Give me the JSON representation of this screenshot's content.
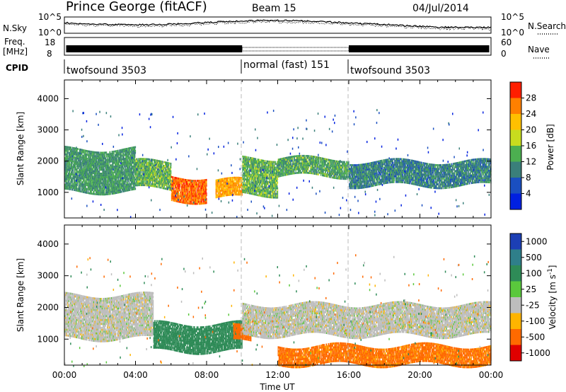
{
  "header": {
    "station": "Prince George (fitACF)",
    "beam": "Beam 15",
    "date": "04/Jul/2014"
  },
  "panels": {
    "nsky_label": "N.Sky",
    "nsearch_label": "N.Search",
    "log_tick_top": "10^5",
    "log_tick_bottom": "10^0",
    "freq_label_line1": "Freq.",
    "freq_label_line2": "[MHz]",
    "freq_ticks": [
      "18",
      "8"
    ],
    "nave_label": "Nave",
    "nave_ticks": [
      "60",
      "0"
    ],
    "cpid_label": "CPID",
    "cpid_segments": [
      {
        "name": "twofsound 3503",
        "start_h": 0,
        "end_h": 10
      },
      {
        "name": "normal (fast) 151",
        "start_h": 10,
        "end_h": 16
      },
      {
        "name": "twofsound 3503",
        "start_h": 16,
        "end_h": 24
      }
    ]
  },
  "axes": {
    "ylabel": "Slant Range [km]",
    "xlabel": "Time UT",
    "x_ticks": [
      "00:00",
      "04:00",
      "08:00",
      "12:00",
      "16:00",
      "20:00",
      "00:00"
    ],
    "y_ticks": [
      "1000",
      "2000",
      "3000",
      "4000"
    ]
  },
  "colorbars": {
    "power": {
      "label": "Power [dB]",
      "ticks": [
        "4",
        "8",
        "12",
        "16",
        "20",
        "24",
        "28"
      ],
      "colors": [
        "#0020e0",
        "#1a4fc0",
        "#3a7f7a",
        "#4caf50",
        "#c8dc1e",
        "#ffc000",
        "#ff8000",
        "#ff1e00"
      ]
    },
    "velocity": {
      "label": "Velocity [m s^-1]",
      "ticks": [
        "1000",
        "500",
        "100",
        "25",
        "-25",
        "-100",
        "-500",
        "-1000"
      ],
      "colors": [
        "#1c3fb5",
        "#2f7f8a",
        "#2e8b57",
        "#5ac83c",
        "#bdbdbd",
        "#ffb400",
        "#ff6a00",
        "#e00000"
      ]
    }
  },
  "chart_data": [
    {
      "type": "heatmap",
      "title": "Power",
      "xlabel": "Time UT",
      "ylabel": "Slant Range [km]",
      "xlim": [
        0,
        24
      ],
      "ylim": [
        180,
        4600
      ],
      "colorbar_label": "Power [dB]",
      "colorbar_range": [
        0,
        32
      ],
      "bands": [
        {
          "t0": 0,
          "t1": 4,
          "r0": 1000,
          "r1": 2400,
          "dB": 12
        },
        {
          "t0": 4,
          "t1": 6,
          "r0": 1100,
          "r1": 2000,
          "dB": 14
        },
        {
          "t0": 6,
          "t1": 8,
          "r0": 700,
          "r1": 1500,
          "dB": 27
        },
        {
          "t0": 8.5,
          "t1": 10,
          "r0": 800,
          "r1": 1400,
          "dB": 24
        },
        {
          "t0": 10,
          "t1": 12,
          "r0": 900,
          "r1": 2100,
          "dB": 14
        },
        {
          "t0": 12,
          "t1": 16,
          "r0": 1500,
          "r1": 2100,
          "dB": 13
        },
        {
          "t0": 16,
          "t1": 24,
          "r0": 1200,
          "r1": 2000,
          "dB": 10
        }
      ]
    },
    {
      "type": "heatmap",
      "title": "Velocity",
      "xlabel": "Time UT",
      "ylabel": "Slant Range [km]",
      "xlim": [
        0,
        24
      ],
      "ylim": [
        180,
        4600
      ],
      "colorbar_label": "Velocity [m s^-1]",
      "colorbar_range": [
        -1000,
        1000
      ],
      "bands": [
        {
          "t0": 0,
          "t1": 5,
          "r0": 1000,
          "r1": 2400,
          "v": 0
        },
        {
          "t0": 5,
          "t1": 10,
          "r0": 600,
          "r1": 1500,
          "v": 120
        },
        {
          "t0": 9.5,
          "t1": 10.5,
          "r0": 900,
          "r1": 1400,
          "v": -150
        },
        {
          "t0": 10,
          "t1": 24,
          "r0": 1100,
          "r1": 2100,
          "v": 0
        },
        {
          "t0": 12,
          "t1": 24,
          "r0": 180,
          "r1": 800,
          "v": -80
        }
      ]
    }
  ]
}
